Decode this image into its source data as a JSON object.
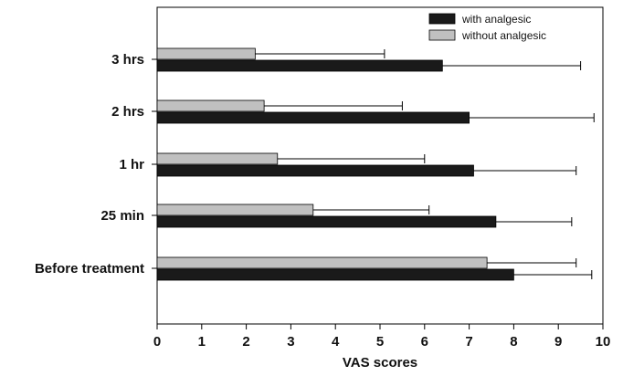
{
  "chart_data": {
    "type": "bar",
    "orientation": "horizontal",
    "categories": [
      "3 hrs",
      "2 hrs",
      "1 hr",
      "25 min",
      "Before treatment"
    ],
    "series": [
      {
        "name": "with analgesic",
        "color": "#1a1a1a",
        "values": [
          6.4,
          7.0,
          7.1,
          7.6,
          8.0
        ],
        "errors": [
          3.1,
          2.8,
          2.3,
          1.7,
          1.75
        ]
      },
      {
        "name": "without analgesic",
        "color": "#c0c0c0",
        "values": [
          2.2,
          2.4,
          2.7,
          3.5,
          7.4
        ],
        "errors": [
          2.9,
          3.1,
          3.3,
          2.6,
          2.0
        ]
      }
    ],
    "xlabel": "VAS scores",
    "ylabel": "",
    "xlim": [
      0,
      10
    ],
    "xticks": [
      "0",
      "1",
      "2",
      "3",
      "4",
      "5",
      "6",
      "7",
      "8",
      "9",
      "10"
    ],
    "error_bars": true,
    "grid": false,
    "legend_position": "top-right"
  }
}
